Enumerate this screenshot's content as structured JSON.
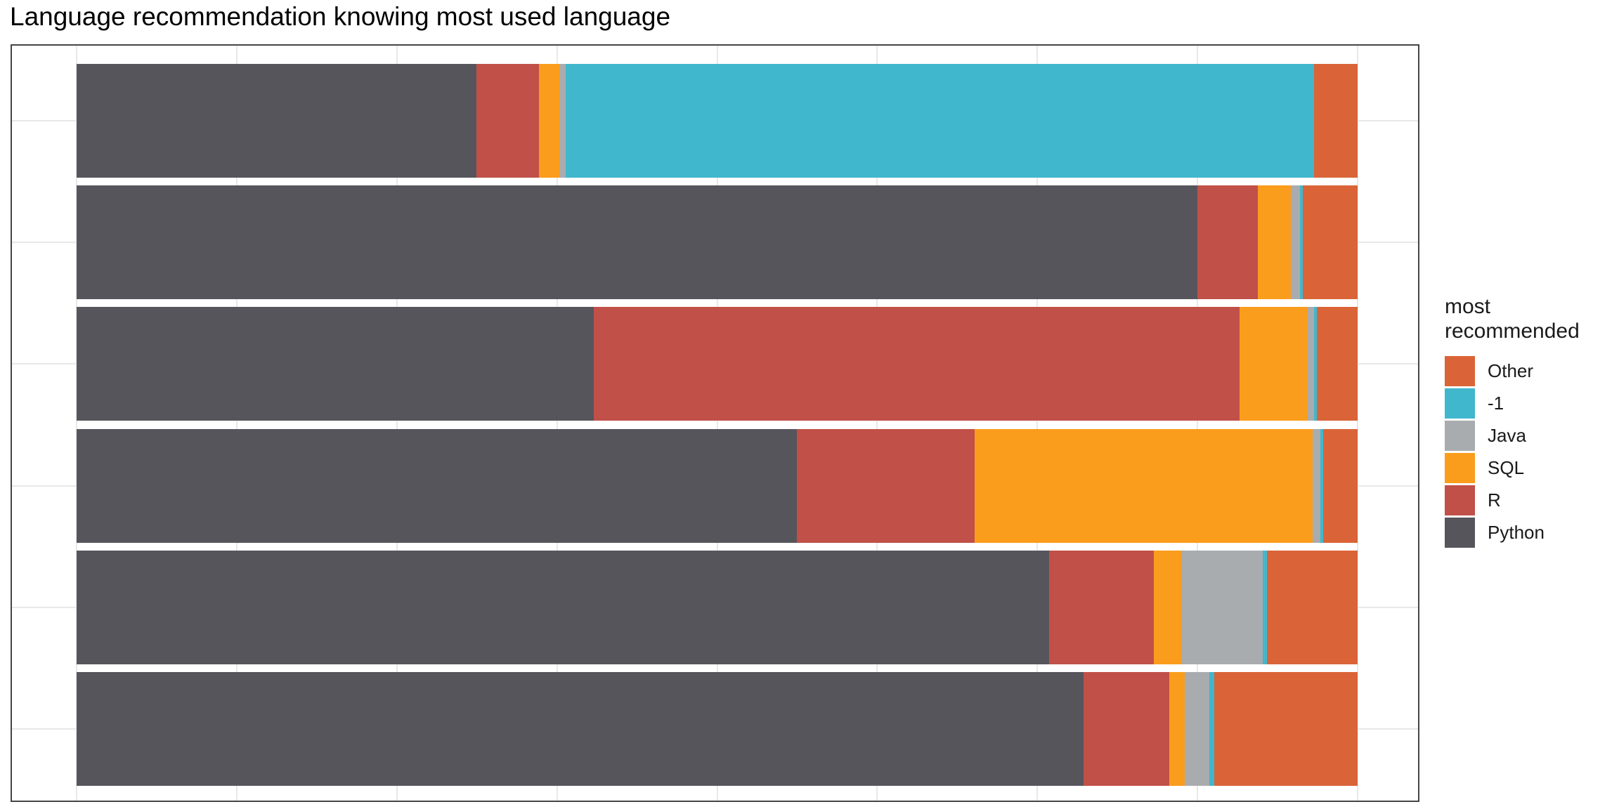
{
  "title": "Language recommendation knowing most used language",
  "legend": {
    "title": "most recommended",
    "items": [
      {
        "label": "Other",
        "color": "#DA6437"
      },
      {
        "label": "-1",
        "color": "#41B7CD"
      },
      {
        "label": "Java",
        "color": "#A9ACAE"
      },
      {
        "label": "SQL",
        "color": "#FA9C1C"
      },
      {
        "label": "R",
        "color": "#C05048"
      },
      {
        "label": "Python",
        "color": "#57555C"
      }
    ]
  },
  "chart_data": {
    "type": "bar",
    "orientation": "horizontal",
    "stacked": true,
    "normalized": true,
    "units": "percent of row",
    "title": "Language recommendation knowing most used language",
    "legend_title": "most recommended",
    "legend_position": "right",
    "legend_order_top_to_bottom": [
      "Other",
      "-1",
      "Java",
      "SQL",
      "R",
      "Python"
    ],
    "categories": [
      "",
      "",
      "",
      "",
      "",
      ""
    ],
    "y_axis": {
      "tick_labels_visible": false
    },
    "x_axis": {
      "min": 0,
      "max": 100,
      "tick_labels_visible": false,
      "gridline_step_percent": 12.5
    },
    "grid": {
      "vertical": true,
      "horizontal_at_row_centers": true
    },
    "series": [
      {
        "name": "Python",
        "color": "#57555C",
        "values": [
          31.2,
          87.5,
          40.4,
          56.2,
          75.9,
          78.6
        ]
      },
      {
        "name": "R",
        "color": "#C05048",
        "values": [
          4.9,
          4.7,
          50.4,
          13.9,
          8.2,
          6.7
        ]
      },
      {
        "name": "SQL",
        "color": "#FA9C1C",
        "values": [
          1.6,
          2.6,
          5.3,
          26.4,
          2.2,
          1.2
        ]
      },
      {
        "name": "Java",
        "color": "#A9ACAE",
        "values": [
          0.5,
          0.7,
          0.5,
          0.6,
          6.3,
          1.9
        ]
      },
      {
        "name": "-1",
        "color": "#41B7CD",
        "values": [
          58.4,
          0.2,
          0.2,
          0.2,
          0.3,
          0.4
        ]
      },
      {
        "name": "Other",
        "color": "#DA6437",
        "values": [
          3.4,
          4.3,
          3.2,
          2.7,
          7.1,
          11.2
        ]
      }
    ],
    "colors": {
      "panel_background": "#FFFFFF",
      "panel_border": "#454545",
      "gridline": "#E8E8E8"
    }
  }
}
